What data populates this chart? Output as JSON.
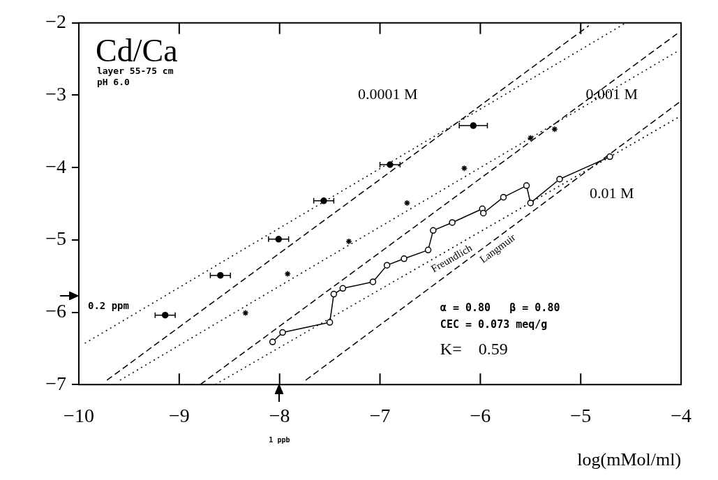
{
  "chart_data": {
    "type": "scatter",
    "title": "Cd/Ca",
    "xlabel": "log(mMol/ml)",
    "xlim": [
      -10,
      -4
    ],
    "xticks": [
      -10,
      -9,
      -8,
      -7,
      -6,
      -5,
      -4
    ],
    "ylim": [
      -7,
      -2
    ],
    "yticks": [
      -7,
      -6,
      -5,
      -4,
      -3,
      -2
    ],
    "grid": false,
    "legend": false,
    "series": [
      {
        "type": "scatter",
        "color": "#000000",
        "marker": "circle",
        "x": [
          -9.14,
          -8.59,
          -8.01,
          -7.56,
          -6.9,
          -6.07
        ],
        "values": [
          -6.04,
          -5.49,
          -4.99,
          -4.46,
          -3.96,
          -3.42
        ],
        "xerrors": [
          0.1,
          0.1,
          0.1,
          0.1,
          0.1,
          0.14
        ]
      },
      {
        "type": "scatter",
        "color": "#000000",
        "marker": "cross",
        "x": [
          -8.34,
          -7.92,
          -7.31,
          -6.73,
          -6.16,
          -5.5,
          -5.26
        ],
        "values": [
          -6.01,
          -5.47,
          -5.02,
          -4.49,
          -4.01,
          -3.59,
          -3.47
        ]
      },
      {
        "type": "line",
        "color": "#000000",
        "marker": "circle",
        "line_style": "solid",
        "x": [
          -8.07,
          -7.97,
          -7.5,
          -7.46,
          -7.37,
          -7.07,
          -6.93,
          -6.76,
          -6.52,
          -6.47,
          -6.28,
          -5.98,
          -5.97,
          -5.77,
          -5.54,
          -5.5,
          -5.21,
          -4.71
        ],
        "values": [
          -6.41,
          -6.28,
          -6.14,
          -5.75,
          -5.67,
          -5.58,
          -5.35,
          -5.26,
          -5.14,
          -4.87,
          -4.76,
          -4.57,
          -4.63,
          -4.41,
          -4.25,
          -4.49,
          -4.16,
          -3.85
        ]
      },
      {
        "type": "line",
        "color": "#000000",
        "marker": "none",
        "line_style": "dotted",
        "x": [
          -9.94,
          -4.55
        ],
        "values": [
          -6.43,
          -2
        ]
      },
      {
        "type": "line",
        "color": "#000000",
        "marker": "none",
        "line_style": "dashed",
        "x": [
          -9.72,
          -4.92
        ],
        "values": [
          -6.94,
          -2.04
        ]
      },
      {
        "type": "line",
        "color": "#000000",
        "marker": "none",
        "line_style": "dotted",
        "x": [
          -9.59,
          -4.02
        ],
        "values": [
          -6.94,
          -2.38
        ]
      },
      {
        "type": "line",
        "color": "#000000",
        "marker": "none",
        "line_style": "dashed",
        "x": [
          -8.79,
          -4.04
        ],
        "values": [
          -7,
          -2.15
        ]
      },
      {
        "name": "Freundlich",
        "type": "line",
        "color": "#000000",
        "marker": "none",
        "line_style": "dotted",
        "x": [
          -8.64,
          -4.02
        ],
        "values": [
          -7,
          -3.3
        ]
      },
      {
        "name": "Langmuir",
        "type": "line",
        "color": "#000000",
        "marker": "none",
        "line_style": "dashed",
        "x": [
          -7.74,
          -4.02
        ],
        "values": [
          -6.94,
          -3.1
        ]
      }
    ],
    "annotations": [
      "layer 55-75 cm",
      "pH 6.0",
      "α = 0.80   β = 0.80",
      "CEC = 0.073 meq/g",
      "K=    0.59",
      "0.0001 M",
      "0.001 M",
      "0.01 M",
      "0.2 ppm",
      "1 ppb"
    ]
  }
}
